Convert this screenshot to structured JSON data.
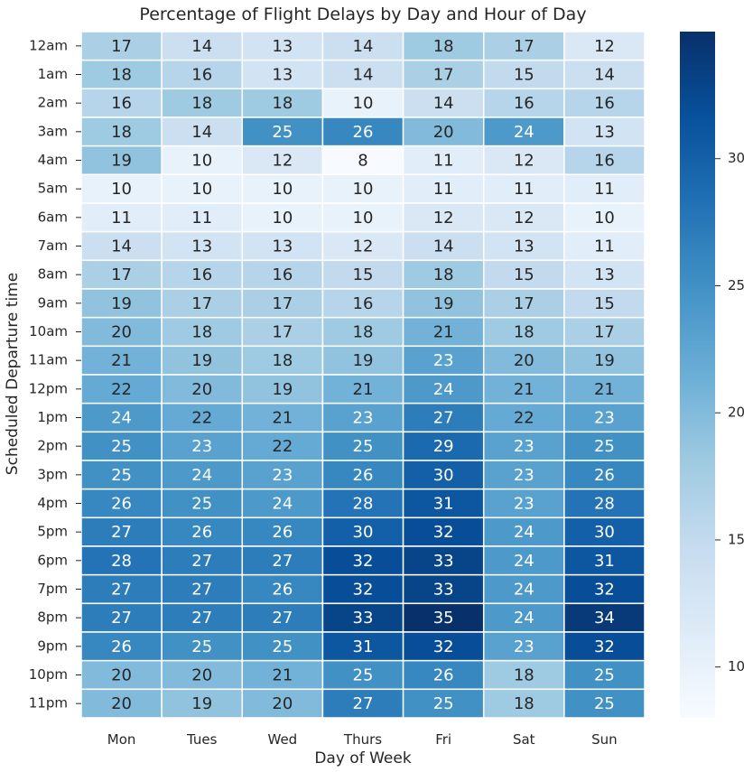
{
  "chart_data": {
    "type": "heatmap",
    "title": "Percentage of Flight Delays by Day and Hour of Day",
    "xlabel": "Day of Week",
    "ylabel": "Scheduled Departure time",
    "x_categories": [
      "Mon",
      "Tues",
      "Wed",
      "Thurs",
      "Fri",
      "Sat",
      "Sun"
    ],
    "y_categories": [
      "12am",
      "1am",
      "2am",
      "3am",
      "4am",
      "5am",
      "6am",
      "7am",
      "8am",
      "9am",
      "10am",
      "11am",
      "12pm",
      "1pm",
      "2pm",
      "3pm",
      "4pm",
      "5pm",
      "6pm",
      "7pm",
      "8pm",
      "9pm",
      "10pm",
      "11pm"
    ],
    "values": [
      [
        17,
        14,
        13,
        14,
        18,
        17,
        12
      ],
      [
        18,
        16,
        13,
        14,
        17,
        15,
        14
      ],
      [
        16,
        18,
        18,
        10,
        14,
        16,
        16
      ],
      [
        18,
        14,
        25,
        26,
        20,
        24,
        13
      ],
      [
        19,
        10,
        12,
        8,
        11,
        12,
        16
      ],
      [
        10,
        10,
        10,
        10,
        11,
        11,
        11
      ],
      [
        11,
        11,
        10,
        10,
        12,
        12,
        10
      ],
      [
        14,
        13,
        13,
        12,
        14,
        13,
        11
      ],
      [
        17,
        16,
        16,
        15,
        18,
        15,
        13
      ],
      [
        19,
        17,
        17,
        16,
        19,
        17,
        15
      ],
      [
        20,
        18,
        17,
        18,
        21,
        18,
        17
      ],
      [
        21,
        19,
        18,
        19,
        23,
        20,
        19
      ],
      [
        22,
        20,
        19,
        21,
        24,
        21,
        21
      ],
      [
        24,
        22,
        21,
        23,
        27,
        22,
        23
      ],
      [
        25,
        23,
        22,
        25,
        29,
        23,
        25
      ],
      [
        25,
        24,
        23,
        26,
        30,
        23,
        26
      ],
      [
        26,
        25,
        24,
        28,
        31,
        23,
        28
      ],
      [
        27,
        26,
        26,
        30,
        32,
        24,
        30
      ],
      [
        28,
        27,
        27,
        32,
        33,
        24,
        31
      ],
      [
        27,
        27,
        26,
        32,
        33,
        24,
        32
      ],
      [
        27,
        27,
        27,
        33,
        35,
        24,
        34
      ],
      [
        26,
        25,
        25,
        31,
        32,
        23,
        32
      ],
      [
        20,
        20,
        21,
        25,
        26,
        18,
        25
      ],
      [
        20,
        19,
        20,
        27,
        25,
        18,
        25
      ]
    ],
    "colorbar": {
      "range": [
        8,
        35
      ],
      "ticks": [
        10,
        15,
        20,
        25,
        30
      ],
      "colormap": "Blues",
      "colors": [
        "#f7fbff",
        "#deebf7",
        "#c6dbef",
        "#9ecae1",
        "#6baed6",
        "#4292c6",
        "#2171b5",
        "#08519c",
        "#08306b"
      ]
    },
    "grid_line_color": "#ffffff"
  }
}
